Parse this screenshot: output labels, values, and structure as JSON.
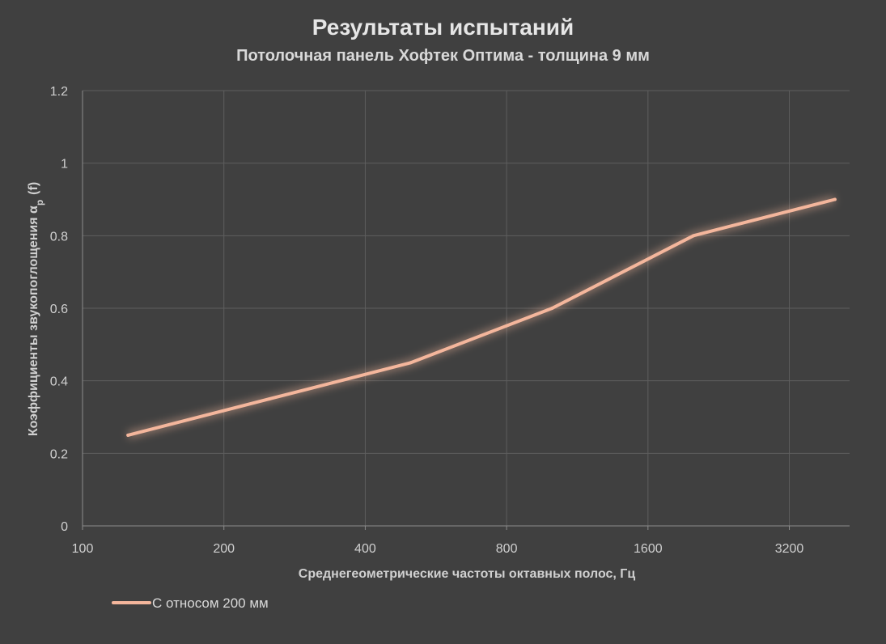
{
  "chart_data": {
    "type": "line",
    "title": "Результаты испытаний",
    "subtitle": "Потолочная панель Хофтек Оптима - толщина 9 мм",
    "xlabel": "Среднегеометрические частоты октавных полос, Гц",
    "ylabel_main": "Коэффициенты звукопоглощения α",
    "ylabel_sub": "p",
    "ylabel_suffix": "(f)",
    "x_scale": "log2",
    "xlim": [
      100,
      4300
    ],
    "ylim": [
      0,
      1.2
    ],
    "x_ticks": [
      100,
      200,
      400,
      800,
      1600,
      3200
    ],
    "x_tick_labels": [
      "100",
      "200",
      "400",
      "800",
      "1600",
      "3200"
    ],
    "y_ticks": [
      0,
      0.2,
      0.4,
      0.6,
      0.8,
      1,
      1.2
    ],
    "y_tick_labels": [
      "0",
      "0.2",
      "0.4",
      "0.6",
      "0.8",
      "1",
      "1.2"
    ],
    "grid": true,
    "legend_position": "bottom-left",
    "x": [
      125,
      250,
      500,
      1000,
      2000,
      4000
    ],
    "series": [
      {
        "name": "С относом 200 мм",
        "color": "#f4b69c",
        "values": [
          0.25,
          0.35,
          0.45,
          0.6,
          0.8,
          0.9
        ]
      }
    ]
  }
}
